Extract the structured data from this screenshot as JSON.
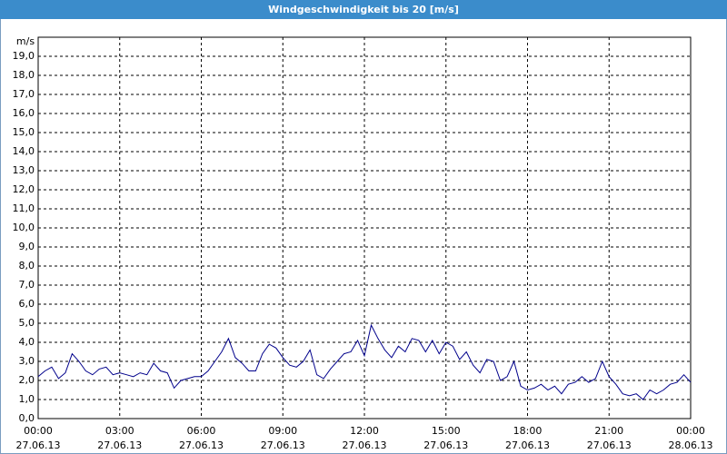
{
  "chart_data": {
    "type": "line",
    "title": "Windgeschwindigkeit bis 20 [m/s]",
    "y_label": "m/s",
    "x": [
      0,
      0.25,
      0.5,
      0.75,
      1,
      1.25,
      1.5,
      1.75,
      2,
      2.25,
      2.5,
      2.75,
      3,
      3.25,
      3.5,
      3.75,
      4,
      4.25,
      4.5,
      4.75,
      5,
      5.25,
      5.5,
      5.75,
      6,
      6.25,
      6.5,
      6.75,
      7,
      7.25,
      7.5,
      7.75,
      8,
      8.25,
      8.5,
      8.75,
      9,
      9.25,
      9.5,
      9.75,
      10,
      10.25,
      10.5,
      10.75,
      11,
      11.25,
      11.5,
      11.75,
      12,
      12.25,
      12.5,
      12.75,
      13,
      13.25,
      13.5,
      13.75,
      14,
      14.25,
      14.5,
      14.75,
      15,
      15.25,
      15.5,
      15.75,
      16,
      16.25,
      16.5,
      16.75,
      17,
      17.25,
      17.5,
      17.75,
      18,
      18.25,
      18.5,
      18.75,
      19,
      19.25,
      19.5,
      19.75,
      20,
      20.25,
      20.5,
      20.75,
      21,
      21.25,
      21.5,
      21.75,
      22,
      22.25,
      22.5,
      22.75,
      23,
      23.25,
      23.5,
      23.75,
      24
    ],
    "series": [
      {
        "name": "Windgeschwindigkeit",
        "color": "#00008b",
        "values": [
          2.2,
          2.5,
          2.7,
          2.1,
          2.4,
          3.4,
          3.0,
          2.5,
          2.3,
          2.6,
          2.7,
          2.3,
          2.4,
          2.3,
          2.2,
          2.4,
          2.3,
          2.9,
          2.5,
          2.4,
          1.6,
          2.0,
          2.1,
          2.2,
          2.2,
          2.5,
          3.0,
          3.5,
          4.2,
          3.2,
          2.9,
          2.5,
          2.5,
          3.4,
          3.9,
          3.7,
          3.2,
          2.8,
          2.7,
          3.0,
          3.6,
          2.3,
          2.1,
          2.6,
          3.0,
          3.4,
          3.5,
          4.1,
          3.3,
          4.9,
          4.2,
          3.6,
          3.2,
          3.8,
          3.5,
          4.2,
          4.1,
          3.5,
          4.1,
          3.4,
          4.0,
          3.8,
          3.1,
          3.5,
          2.8,
          2.4,
          3.1,
          3.0,
          2.0,
          2.2,
          3.0,
          1.7,
          1.5,
          1.6,
          1.8,
          1.5,
          1.7,
          1.3,
          1.8,
          1.9,
          2.2,
          1.9,
          2.1,
          3.0,
          2.2,
          1.8,
          1.3,
          1.2,
          1.3,
          1.0,
          1.5,
          1.3,
          1.5,
          1.8,
          1.9,
          2.3,
          1.9
        ]
      }
    ],
    "xlim": [
      0,
      24
    ],
    "xticks": [
      {
        "value": 0,
        "label": [
          "00:00",
          "27.06.13"
        ]
      },
      {
        "value": 3,
        "label": [
          "03:00",
          "27.06.13"
        ]
      },
      {
        "value": 6,
        "label": [
          "06:00",
          "27.06.13"
        ]
      },
      {
        "value": 9,
        "label": [
          "09:00",
          "27.06.13"
        ]
      },
      {
        "value": 12,
        "label": [
          "12:00",
          "27.06.13"
        ]
      },
      {
        "value": 15,
        "label": [
          "15:00",
          "27.06.13"
        ]
      },
      {
        "value": 18,
        "label": [
          "18:00",
          "27.06.13"
        ]
      },
      {
        "value": 21,
        "label": [
          "21:00",
          "27.06.13"
        ]
      },
      {
        "value": 24,
        "label": [
          "00:00",
          "28.06.13"
        ]
      }
    ],
    "ylim": [
      0,
      20
    ],
    "yticks": [
      {
        "value": 0,
        "label": "0,0"
      },
      {
        "value": 1,
        "label": "1,0"
      },
      {
        "value": 2,
        "label": "2,0"
      },
      {
        "value": 3,
        "label": "3,0"
      },
      {
        "value": 4,
        "label": "4,0"
      },
      {
        "value": 5,
        "label": "5,0"
      },
      {
        "value": 6,
        "label": "6,0"
      },
      {
        "value": 7,
        "label": "7,0"
      },
      {
        "value": 8,
        "label": "8,0"
      },
      {
        "value": 9,
        "label": "9,0"
      },
      {
        "value": 10,
        "label": "10,0"
      },
      {
        "value": 11,
        "label": "11,0"
      },
      {
        "value": 12,
        "label": "12,0"
      },
      {
        "value": 13,
        "label": "13,0"
      },
      {
        "value": 14,
        "label": "14,0"
      },
      {
        "value": 15,
        "label": "15,0"
      },
      {
        "value": 16,
        "label": "16,0"
      },
      {
        "value": 17,
        "label": "17,0"
      },
      {
        "value": 18,
        "label": "18,0"
      },
      {
        "value": 19,
        "label": "19,0"
      }
    ],
    "grid": true
  }
}
